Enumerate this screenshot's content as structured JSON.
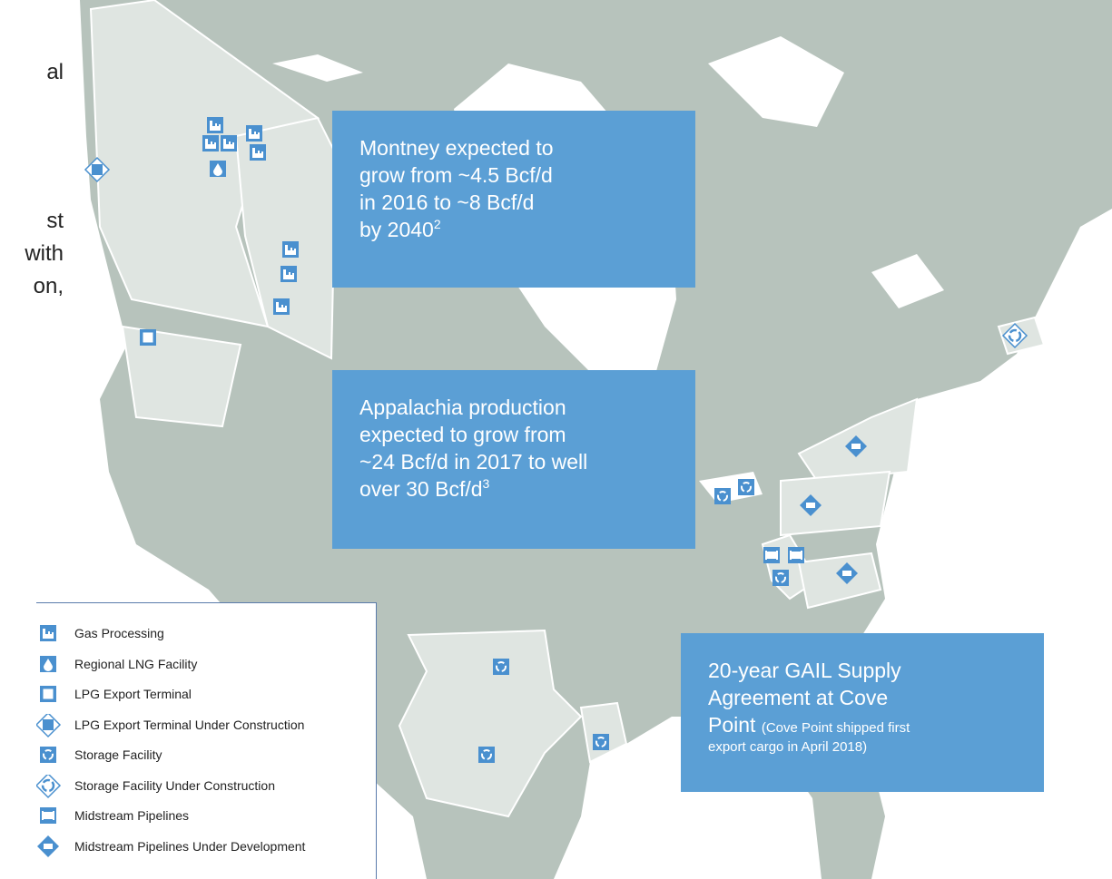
{
  "side_text": [
    "al",
    "st",
    "with",
    "on,"
  ],
  "callouts": [
    {
      "lines": [
        "Montney expected to",
        "grow from ~4.5 Bcf/d",
        "in 2016 to ~8 Bcf/d",
        "by 2040"
      ],
      "superscript": "2"
    },
    {
      "lines": [
        "Appalachia production",
        "expected to grow from",
        "~24 Bcf/d in 2017 to well",
        "over 30 Bcf/d"
      ],
      "superscript": "3"
    },
    {
      "lines": [
        "20-year GAIL Supply",
        "Agreement at Cove",
        "Point"
      ],
      "note_lines": [
        "(Cove Point  shipped first",
        "export cargo in April 2018)"
      ]
    }
  ],
  "legend": [
    "Gas Processing",
    "Regional LNG Facility",
    "LPG Export Terminal",
    "LPG Export Terminal Under Construction",
    "Storage Facility",
    "Storage Facility Under Construction",
    "Midstream Pipelines",
    "Midstream Pipelines Under Development"
  ]
}
